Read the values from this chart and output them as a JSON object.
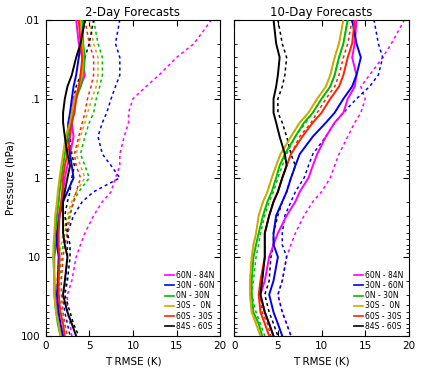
{
  "title_left": "2-Day Forecasts",
  "title_right": "10-Day Forecasts",
  "xlabel": "T RMSE (K)",
  "ylabel": "Pressure (hPa)",
  "xlim_left": [
    0,
    20
  ],
  "xlim_right": [
    0,
    20
  ],
  "pressure_levels": [
    0.01,
    0.02,
    0.03,
    0.05,
    0.07,
    0.1,
    0.15,
    0.2,
    0.3,
    0.5,
    0.7,
    1.0,
    1.5,
    2.0,
    3.0,
    5.0,
    7.0,
    10.0,
    20.0,
    30.0,
    50.0,
    70.0,
    100.0
  ],
  "colors": {
    "60N_84N": "#ff00ff",
    "30N_60N": "#0000ee",
    "0N_30N": "#00bb00",
    "30S_0N": "#ccaa00",
    "60S_30S": "#ff2200",
    "84S_60S": "#000000"
  },
  "legend_labels": [
    "60N - 84N",
    "30N - 60N",
    "0N - 30N",
    "30S -  0N",
    "60S - 30S",
    "84S - 60S"
  ],
  "legend_colors": [
    "#ff00ff",
    "#0000ee",
    "#00bb00",
    "#ccaa00",
    "#ff2200",
    "#000000"
  ],
  "ytick_labels": [
    ".01",
    ".1",
    "1",
    "10",
    "100"
  ],
  "ytick_positions": [
    0.01,
    0.1,
    1.0,
    10.0,
    100.0
  ],
  "xticks": [
    0,
    5,
    10,
    15,
    20
  ],
  "solid_2day": {
    "60N_84N": [
      3.5,
      3.8,
      4.2,
      4.5,
      4.0,
      3.2,
      3.0,
      3.0,
      3.2,
      2.8,
      2.5,
      2.2,
      2.0,
      1.8,
      1.5,
      1.3,
      1.2,
      1.0,
      1.0,
      1.1,
      1.3,
      1.5,
      1.8
    ],
    "30N_60N": [
      4.5,
      4.0,
      3.8,
      3.5,
      3.2,
      3.0,
      2.8,
      2.6,
      2.5,
      2.8,
      3.0,
      3.2,
      2.5,
      2.0,
      1.6,
      1.3,
      1.3,
      1.5,
      1.4,
      1.3,
      1.5,
      1.7,
      2.0
    ],
    "0N_30N": [
      4.2,
      4.3,
      4.5,
      4.3,
      4.0,
      3.5,
      3.2,
      3.0,
      2.5,
      2.2,
      2.0,
      1.8,
      1.6,
      1.5,
      1.3,
      1.1,
      1.0,
      0.9,
      1.0,
      1.0,
      1.2,
      1.4,
      1.7
    ],
    "30S_0N": [
      4.0,
      4.2,
      4.3,
      4.2,
      3.8,
      3.3,
      3.0,
      2.8,
      2.3,
      2.0,
      1.8,
      1.6,
      1.4,
      1.3,
      1.1,
      1.0,
      0.9,
      0.9,
      1.0,
      1.0,
      1.2,
      1.5,
      1.7
    ],
    "60S_30S": [
      3.8,
      4.0,
      4.2,
      4.0,
      3.8,
      3.5,
      3.3,
      3.0,
      2.8,
      2.5,
      2.2,
      2.0,
      1.9,
      1.8,
      1.6,
      1.5,
      1.5,
      1.6,
      1.5,
      1.5,
      1.7,
      2.0,
      2.2
    ],
    "84S_60S": [
      4.5,
      4.0,
      3.5,
      3.0,
      2.5,
      2.2,
      2.0,
      2.0,
      2.2,
      2.5,
      2.8,
      2.5,
      2.2,
      2.0,
      2.0,
      2.0,
      2.2,
      2.5,
      2.2,
      2.0,
      2.5,
      3.0,
      3.5
    ]
  },
  "dotted_2day": {
    "60N_84N": [
      19.0,
      17.0,
      15.0,
      13.0,
      11.5,
      10.0,
      9.5,
      9.5,
      9.0,
      8.5,
      8.5,
      8.0,
      7.5,
      6.5,
      5.5,
      4.5,
      4.0,
      3.5,
      3.0,
      2.5,
      2.5,
      2.8,
      3.0
    ],
    "30N_60N": [
      8.5,
      8.0,
      8.5,
      8.5,
      8.0,
      7.5,
      7.0,
      6.5,
      6.0,
      6.5,
      7.5,
      8.5,
      5.5,
      4.2,
      3.2,
      2.5,
      2.5,
      2.5,
      2.3,
      2.0,
      2.2,
      2.5,
      2.8
    ],
    "0N_30N": [
      5.5,
      6.0,
      6.5,
      6.5,
      6.2,
      5.8,
      5.5,
      5.0,
      4.5,
      4.0,
      4.5,
      5.0,
      3.8,
      3.2,
      2.7,
      2.2,
      2.0,
      1.8,
      1.6,
      1.5,
      1.8,
      2.0,
      2.2
    ],
    "30S_0N": [
      5.0,
      5.5,
      6.0,
      6.0,
      5.8,
      5.3,
      4.8,
      4.5,
      4.0,
      3.5,
      4.0,
      4.5,
      3.5,
      3.0,
      2.5,
      2.0,
      1.8,
      1.5,
      1.3,
      1.3,
      1.5,
      1.8,
      2.0
    ],
    "60S_30S": [
      4.5,
      5.0,
      5.5,
      5.5,
      5.2,
      4.8,
      4.5,
      4.2,
      3.8,
      3.3,
      3.5,
      4.0,
      3.5,
      3.2,
      2.8,
      2.5,
      2.2,
      2.0,
      1.8,
      1.8,
      2.0,
      2.2,
      2.5
    ],
    "84S_60S": [
      5.5,
      5.0,
      4.5,
      4.0,
      3.5,
      3.2,
      3.0,
      2.8,
      2.8,
      3.0,
      3.3,
      3.0,
      2.8,
      2.5,
      2.2,
      2.5,
      2.8,
      2.8,
      2.5,
      2.2,
      2.8,
      3.2,
      3.8
    ]
  },
  "solid_10day": {
    "60N_84N": [
      14.0,
      13.8,
      13.5,
      14.0,
      13.8,
      13.0,
      12.5,
      11.5,
      10.5,
      9.5,
      9.0,
      8.5,
      7.5,
      7.0,
      6.0,
      5.0,
      4.5,
      4.0,
      3.5,
      3.0,
      3.5,
      4.0,
      4.5
    ],
    "30N_60N": [
      13.5,
      14.0,
      14.5,
      14.0,
      13.5,
      12.5,
      11.5,
      10.5,
      9.0,
      7.5,
      7.0,
      6.5,
      6.0,
      5.5,
      4.8,
      4.5,
      4.5,
      5.0,
      4.5,
      4.0,
      4.5,
      5.0,
      5.5
    ],
    "0N_30N": [
      13.0,
      12.5,
      12.0,
      11.5,
      11.0,
      10.0,
      9.0,
      8.0,
      7.0,
      5.8,
      5.2,
      4.8,
      4.3,
      3.8,
      3.3,
      2.8,
      2.5,
      2.2,
      2.0,
      2.0,
      2.2,
      2.8,
      3.2
    ],
    "30S_0N": [
      12.5,
      12.0,
      11.5,
      11.0,
      10.5,
      9.5,
      8.5,
      7.5,
      6.5,
      5.3,
      4.8,
      4.3,
      3.8,
      3.3,
      2.8,
      2.5,
      2.2,
      2.0,
      1.8,
      1.8,
      2.0,
      2.5,
      3.0
    ],
    "60S_30S": [
      13.8,
      13.5,
      13.0,
      12.5,
      12.0,
      11.0,
      10.0,
      9.0,
      7.8,
      6.5,
      6.0,
      5.5,
      5.0,
      4.5,
      4.0,
      3.5,
      3.5,
      3.5,
      3.0,
      2.8,
      3.0,
      3.5,
      4.0
    ],
    "84S_60S": [
      4.5,
      4.8,
      5.2,
      5.0,
      4.8,
      4.5,
      4.5,
      4.8,
      5.2,
      5.8,
      6.0,
      5.5,
      5.0,
      4.5,
      4.0,
      3.5,
      3.5,
      3.5,
      3.2,
      3.0,
      3.5,
      4.0,
      4.5
    ]
  },
  "dotted_10day": {
    "60N_84N": [
      19.5,
      18.0,
      17.0,
      15.5,
      14.5,
      15.0,
      14.5,
      13.8,
      13.0,
      12.0,
      11.5,
      11.0,
      10.0,
      9.0,
      8.0,
      7.0,
      6.5,
      6.0,
      5.5,
      5.0,
      5.5,
      6.0,
      6.5
    ],
    "30N_60N": [
      16.0,
      16.5,
      17.0,
      16.5,
      15.5,
      14.0,
      12.5,
      11.5,
      10.5,
      9.0,
      8.5,
      8.0,
      7.0,
      6.5,
      5.8,
      5.5,
      5.5,
      6.0,
      5.5,
      5.0,
      5.5,
      6.0,
      6.5
    ],
    "0N_30N": [
      13.0,
      12.5,
      12.0,
      11.5,
      11.0,
      10.0,
      9.0,
      8.2,
      7.0,
      6.0,
      5.5,
      5.0,
      4.5,
      4.0,
      3.5,
      3.0,
      2.8,
      2.5,
      2.2,
      2.0,
      2.5,
      3.0,
      3.5
    ],
    "30S_0N": [
      12.5,
      12.0,
      11.5,
      11.0,
      10.5,
      9.5,
      8.5,
      7.5,
      6.5,
      5.3,
      4.8,
      4.3,
      3.8,
      3.3,
      2.8,
      2.5,
      2.2,
      2.0,
      1.8,
      1.8,
      2.0,
      2.5,
      3.0
    ],
    "60S_30S": [
      13.5,
      13.0,
      12.5,
      12.0,
      11.5,
      10.5,
      9.5,
      8.8,
      7.5,
      6.5,
      6.0,
      5.5,
      5.0,
      4.5,
      4.0,
      3.5,
      3.5,
      3.5,
      3.2,
      3.0,
      3.2,
      3.8,
      4.2
    ],
    "84S_60S": [
      5.0,
      5.5,
      6.0,
      5.8,
      5.5,
      5.0,
      5.0,
      5.5,
      6.0,
      6.5,
      7.0,
      6.5,
      6.0,
      5.5,
      5.0,
      4.5,
      4.5,
      4.2,
      4.0,
      3.5,
      4.0,
      4.5,
      5.0
    ]
  },
  "background_color": "#ffffff"
}
